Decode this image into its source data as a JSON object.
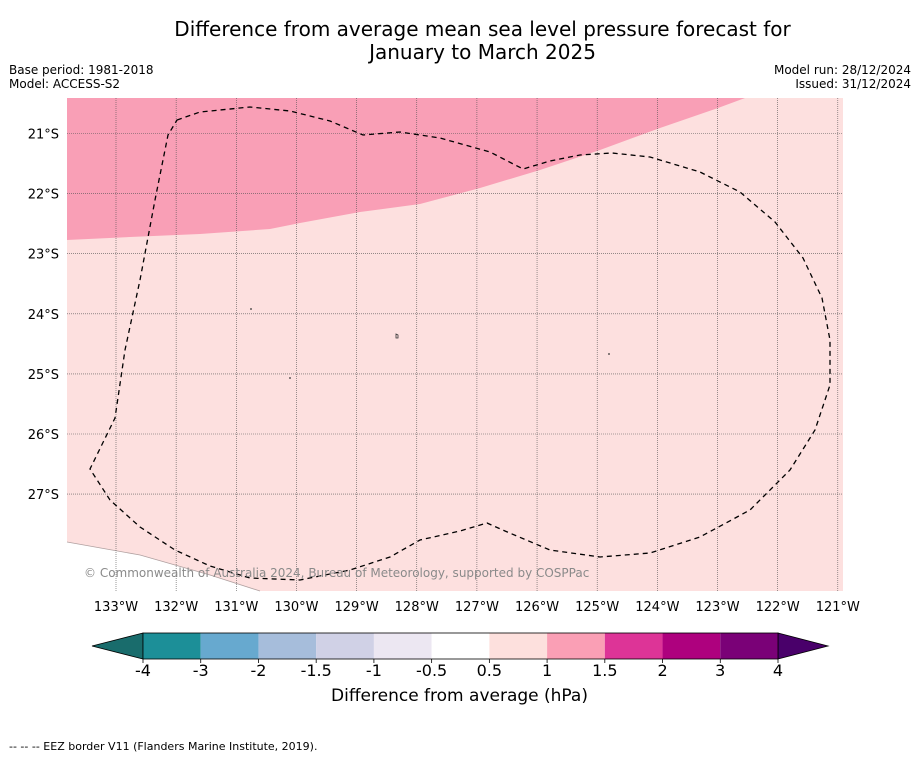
{
  "title": {
    "line1": "Difference from average mean sea level pressure forecast for",
    "line2": "January to March 2025"
  },
  "info": {
    "base_period": "Base period: 1981-2018",
    "model": "Model: ACCESS-S2",
    "model_run": "Model run: 28/12/2024",
    "issued": "Issued: 31/12/2024"
  },
  "map": {
    "lat_labels": [
      "21°S",
      "22°S",
      "23°S",
      "24°S",
      "25°S",
      "26°S",
      "27°S"
    ],
    "lon_labels": [
      "133°W",
      "132°W",
      "131°W",
      "130°W",
      "129°W",
      "128°W",
      "127°W",
      "126°W",
      "125°W",
      "124°W",
      "123°W",
      "122°W",
      "121°W"
    ],
    "copyright": "© Commonwealth of Australia 2024, Bureau of Meteorology, supported by COSPPac",
    "fill_colors": {
      "band_0_5_to_1": "#fde0df",
      "band_1_to_1_5": "#f99fb6"
    },
    "eez_line_style": "dashed black"
  },
  "colorbar": {
    "tick_labels": [
      "-4",
      "-3",
      "-2",
      "-1.5",
      "-1",
      "-0.5",
      "0.5",
      "1",
      "1.5",
      "2",
      "3",
      "4"
    ],
    "colors": [
      "#196c6c",
      "#1c8f98",
      "#67a9cf",
      "#a6bddb",
      "#d0d1e6",
      "#ece7f2",
      "#ffffff",
      "#fde0dd",
      "#fa9fb5",
      "#dd3497",
      "#ae017e",
      "#7a0177",
      "#49006a"
    ],
    "label": "Difference from average (hPa)"
  },
  "footer": "--  --  -- EEZ border V11 (Flanders Marine Institute, 2019)."
}
